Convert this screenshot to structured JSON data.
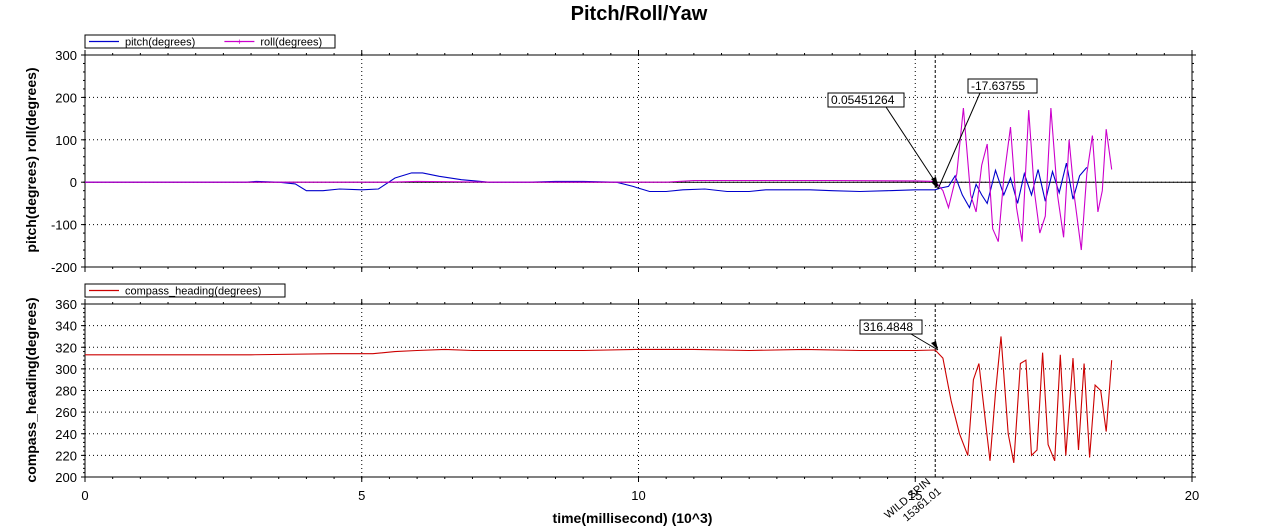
{
  "chart_data": [
    {
      "type": "line",
      "title": "Pitch/Roll/Yaw",
      "xlabel": "time(millisecond) (10^3)",
      "ylabel": "pitch(degrees) roll(degrees)",
      "xlim": [
        0,
        20
      ],
      "ylim": [
        -200,
        300
      ],
      "xticks": [
        "0",
        "5",
        "10",
        "15",
        "20"
      ],
      "yticks": [
        "-200",
        "-100",
        "0",
        "100",
        "200",
        "300"
      ],
      "grid": true,
      "legend_position": "top-left",
      "series": [
        {
          "name": "pitch(degrees)",
          "color": "#0000cc",
          "points": [
            [
              0,
              0
            ],
            [
              2.9,
              0
            ],
            [
              3.1,
              2
            ],
            [
              3.5,
              0
            ],
            [
              3.8,
              -4
            ],
            [
              4.0,
              -20
            ],
            [
              4.3,
              -20
            ],
            [
              4.6,
              -16
            ],
            [
              5.0,
              -18
            ],
            [
              5.3,
              -16
            ],
            [
              5.6,
              10
            ],
            [
              5.9,
              22
            ],
            [
              6.1,
              22
            ],
            [
              6.4,
              14
            ],
            [
              6.8,
              6
            ],
            [
              7.3,
              0
            ],
            [
              8.0,
              0
            ],
            [
              8.5,
              2
            ],
            [
              9.0,
              2
            ],
            [
              9.6,
              0
            ],
            [
              9.9,
              -10
            ],
            [
              10.2,
              -22
            ],
            [
              10.5,
              -22
            ],
            [
              10.8,
              -18
            ],
            [
              11.2,
              -16
            ],
            [
              11.6,
              -22
            ],
            [
              12.0,
              -22
            ],
            [
              12.3,
              -18
            ],
            [
              12.7,
              -18
            ],
            [
              13.1,
              -18
            ],
            [
              13.5,
              -20
            ],
            [
              14.0,
              -22
            ],
            [
              14.5,
              -20
            ],
            [
              15.0,
              -18
            ],
            [
              15.36,
              -18
            ],
            [
              15.45,
              -14
            ],
            [
              15.6,
              -10
            ],
            [
              15.72,
              15
            ],
            [
              15.85,
              -30
            ],
            [
              15.98,
              -60
            ],
            [
              16.1,
              -5
            ],
            [
              16.2,
              -30
            ],
            [
              16.3,
              -50
            ],
            [
              16.45,
              28
            ],
            [
              16.6,
              -30
            ],
            [
              16.72,
              10
            ],
            [
              16.85,
              -50
            ],
            [
              16.97,
              20
            ],
            [
              17.1,
              -30
            ],
            [
              17.22,
              30
            ],
            [
              17.35,
              -45
            ],
            [
              17.48,
              25
            ],
            [
              17.6,
              -25
            ],
            [
              17.73,
              45
            ],
            [
              17.85,
              -40
            ],
            [
              17.97,
              15
            ],
            [
              18.1,
              35
            ]
          ]
        },
        {
          "name": "roll(degrees)",
          "color": "#cc00cc",
          "points": [
            [
              0,
              0
            ],
            [
              5.5,
              0
            ],
            [
              6.0,
              2
            ],
            [
              7.5,
              0
            ],
            [
              10.5,
              0
            ],
            [
              11.0,
              4
            ],
            [
              12.0,
              4
            ],
            [
              13.5,
              4
            ],
            [
              15.0,
              3
            ],
            [
              15.36,
              2
            ],
            [
              15.5,
              -20
            ],
            [
              15.6,
              -60
            ],
            [
              15.75,
              20
            ],
            [
              15.87,
              175
            ],
            [
              16.0,
              -30
            ],
            [
              16.1,
              -70
            ],
            [
              16.2,
              40
            ],
            [
              16.3,
              90
            ],
            [
              16.4,
              -110
            ],
            [
              16.5,
              -140
            ],
            [
              16.6,
              10
            ],
            [
              16.72,
              130
            ],
            [
              16.83,
              -60
            ],
            [
              16.93,
              -140
            ],
            [
              17.05,
              170
            ],
            [
              17.15,
              -20
            ],
            [
              17.25,
              -120
            ],
            [
              17.35,
              -80
            ],
            [
              17.45,
              175
            ],
            [
              17.57,
              -30
            ],
            [
              17.68,
              -130
            ],
            [
              17.78,
              100
            ],
            [
              17.88,
              -40
            ],
            [
              18.0,
              -160
            ],
            [
              18.1,
              20
            ],
            [
              18.2,
              110
            ],
            [
              18.3,
              -70
            ],
            [
              18.38,
              -20
            ],
            [
              18.45,
              125
            ],
            [
              18.55,
              30
            ]
          ]
        }
      ],
      "annotations": [
        {
          "text": "0.05451264",
          "x": 15.3,
          "y": 0.05
        },
        {
          "text": "-17.63755",
          "x": 15.36,
          "y": -17.6
        }
      ],
      "markers": [
        {
          "x": 15.36101,
          "label": "WILD SPIN",
          "sublabel": "15361.01"
        }
      ]
    },
    {
      "type": "line",
      "xlabel": "time(millisecond) (10^3)",
      "ylabel": "compass_heading(degrees)",
      "xlim": [
        0,
        20
      ],
      "ylim": [
        200,
        360
      ],
      "xticks": [
        "0",
        "5",
        "10",
        "15",
        "20"
      ],
      "yticks": [
        "200",
        "220",
        "240",
        "260",
        "280",
        "300",
        "320",
        "340",
        "360"
      ],
      "grid": true,
      "legend_position": "top-left",
      "series": [
        {
          "name": "compass_heading(degrees)",
          "color": "#cc0000",
          "points": [
            [
              0,
              313
            ],
            [
              3.0,
              313
            ],
            [
              4.5,
              314
            ],
            [
              5.2,
              314
            ],
            [
              5.6,
              316
            ],
            [
              6.0,
              317
            ],
            [
              6.5,
              318
            ],
            [
              7.0,
              317
            ],
            [
              8.0,
              317
            ],
            [
              9.0,
              317
            ],
            [
              10.0,
              318
            ],
            [
              11.0,
              318
            ],
            [
              12.0,
              317
            ],
            [
              13.0,
              318
            ],
            [
              14.0,
              317
            ],
            [
              15.0,
              317
            ],
            [
              15.36,
              317.5
            ],
            [
              15.5,
              310
            ],
            [
              15.65,
              270
            ],
            [
              15.8,
              240
            ],
            [
              15.95,
              220
            ],
            [
              16.05,
              290
            ],
            [
              16.15,
              305
            ],
            [
              16.25,
              260
            ],
            [
              16.35,
              215
            ],
            [
              16.45,
              278
            ],
            [
              16.55,
              330
            ],
            [
              16.68,
              240
            ],
            [
              16.78,
              213
            ],
            [
              16.9,
              305
            ],
            [
              17.0,
              308
            ],
            [
              17.1,
              220
            ],
            [
              17.2,
              225
            ],
            [
              17.3,
              315
            ],
            [
              17.4,
              230
            ],
            [
              17.52,
              215
            ],
            [
              17.62,
              313
            ],
            [
              17.72,
              220
            ],
            [
              17.85,
              310
            ],
            [
              17.95,
              225
            ],
            [
              18.05,
              305
            ],
            [
              18.15,
              218
            ],
            [
              18.25,
              285
            ],
            [
              18.35,
              280
            ],
            [
              18.45,
              242
            ],
            [
              18.55,
              308
            ]
          ]
        }
      ],
      "annotations": [
        {
          "text": "316.4848",
          "x": 15.36,
          "y": 316.48
        }
      ],
      "markers": [
        {
          "x": 15.36101,
          "label": "WILD SPIN",
          "sublabel": "15361.01"
        }
      ]
    }
  ]
}
